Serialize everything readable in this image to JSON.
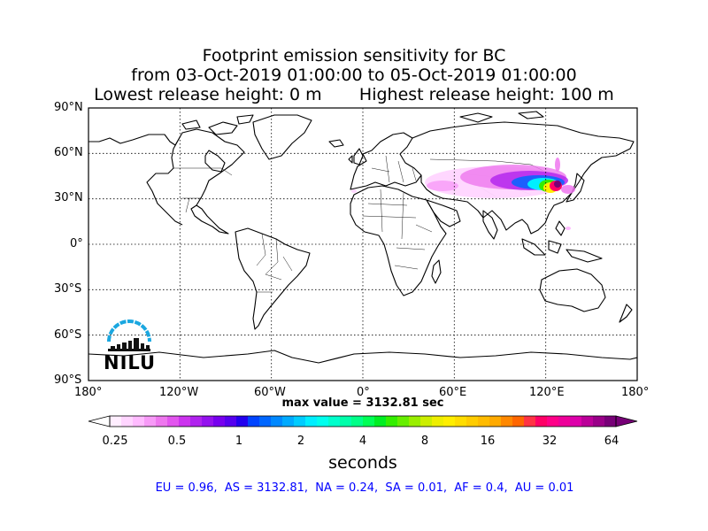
{
  "title": {
    "line1": "Footprint emission sensitivity for BC",
    "line2": "from 03-Oct-2019 01:00:00 to 05-Oct-2019 01:00:00",
    "line3_left": "Lowest release height: 0 m",
    "line3_right": "Highest release height: 100 m"
  },
  "map": {
    "projection": "equirectangular",
    "lat_labels": [
      "90°N",
      "60°N",
      "30°N",
      "0°",
      "30°S",
      "60°S",
      "90°S"
    ],
    "lon_labels": [
      "180°",
      "120°W",
      "60°W",
      "0°",
      "60°E",
      "120°E",
      "180°"
    ],
    "gridlines": "dotted",
    "plume_region": "East Asia (China, Korea, Japan) extending west to Central Asia",
    "logo": "NILU"
  },
  "max_value": "max value = 3132.81 sec",
  "colorbar": {
    "tick_labels": [
      "0.25",
      "0.5",
      "1",
      "2",
      "4",
      "8",
      "16",
      "32",
      "64"
    ],
    "units": "seconds",
    "extend": "both",
    "colors": [
      "#ffeeff",
      "#ffd5ff",
      "#ffbbff",
      "#f79af7",
      "#ee77ee",
      "#e255ee",
      "#cc33ee",
      "#b022ee",
      "#9411ee",
      "#7700ee",
      "#5500ee",
      "#2200ee",
      "#0044ff",
      "#0066ff",
      "#0088ff",
      "#00aaff",
      "#00ccff",
      "#00eeff",
      "#00ffee",
      "#00ffcc",
      "#00ffaa",
      "#00ff88",
      "#00ff55",
      "#00ee22",
      "#33ee00",
      "#66ee00",
      "#99ee00",
      "#ccee00",
      "#eeee00",
      "#ffee00",
      "#ffdd00",
      "#ffcc00",
      "#ffbb00",
      "#ffaa00",
      "#ff8800",
      "#ff6600",
      "#ff3344",
      "#ff0066",
      "#ff0088",
      "#ee0099",
      "#dd00aa",
      "#bb0099",
      "#990088",
      "#770077"
    ]
  },
  "summary": "EU = 0.96,  AS = 3132.81,  NA = 0.24,  SA = 0.01,  AF = 0.4,  AU = 0.01"
}
